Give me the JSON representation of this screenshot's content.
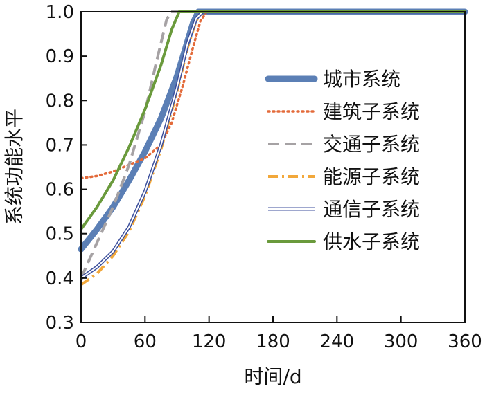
{
  "chart_data": {
    "type": "line",
    "title": "",
    "xlabel": "时间/d",
    "ylabel": "系统功能水平",
    "xlim": [
      0,
      360
    ],
    "ylim": [
      0.3,
      1.0
    ],
    "xticks": [
      0,
      60,
      120,
      180,
      240,
      300,
      360
    ],
    "yticks": [
      0.3,
      0.4,
      0.5,
      0.6,
      0.7,
      0.8,
      0.9,
      1.0
    ],
    "xtick_labels": [
      "0",
      "60",
      "120",
      "180",
      "240",
      "300",
      "360"
    ],
    "ytick_labels": [
      "0.3",
      "0.4",
      "0.5",
      "0.6",
      "0.7",
      "0.8",
      "0.9",
      "1.0"
    ],
    "grid": false,
    "legend_position": "right-center",
    "series": [
      {
        "name": "城市系统",
        "color": "#5b7fb5",
        "style": "thick-solid",
        "x": [
          0,
          15,
          30,
          45,
          60,
          75,
          90,
          105,
          110,
          360
        ],
        "y": [
          0.465,
          0.51,
          0.56,
          0.62,
          0.685,
          0.76,
          0.855,
          0.975,
          1.0,
          1.0
        ]
      },
      {
        "name": "建筑子系统",
        "color": "#e36a3a",
        "style": "dotted",
        "x": [
          0,
          15,
          30,
          45,
          60,
          75,
          85,
          95,
          105,
          112,
          118,
          360
        ],
        "y": [
          0.625,
          0.63,
          0.64,
          0.655,
          0.67,
          0.7,
          0.75,
          0.83,
          0.92,
          0.98,
          1.0,
          1.0
        ]
      },
      {
        "name": "交通子系统",
        "color": "#a6a2a4",
        "style": "dashed",
        "x": [
          0,
          15,
          30,
          45,
          60,
          70,
          80,
          84,
          360
        ],
        "y": [
          0.4,
          0.48,
          0.56,
          0.655,
          0.775,
          0.88,
          0.98,
          1.0,
          1.0
        ]
      },
      {
        "name": "能源子系统",
        "color": "#f2a83b",
        "style": "dash-dot",
        "x": [
          0,
          15,
          30,
          45,
          60,
          75,
          90,
          100,
          108,
          114,
          360
        ],
        "y": [
          0.385,
          0.41,
          0.45,
          0.505,
          0.585,
          0.69,
          0.82,
          0.92,
          0.98,
          1.0,
          1.0
        ]
      },
      {
        "name": "通信子系统",
        "color": "#3c4f9c",
        "style": "double",
        "x": [
          0,
          15,
          30,
          45,
          60,
          75,
          90,
          100,
          108,
          114,
          360
        ],
        "y": [
          0.4,
          0.425,
          0.46,
          0.515,
          0.595,
          0.7,
          0.83,
          0.93,
          0.985,
          1.0,
          1.0
        ]
      },
      {
        "name": "供水子系统",
        "color": "#6a9a3c",
        "style": "solid",
        "x": [
          0,
          15,
          30,
          45,
          60,
          75,
          85,
          92,
          360
        ],
        "y": [
          0.51,
          0.56,
          0.62,
          0.695,
          0.78,
          0.88,
          0.96,
          1.0,
          1.0
        ]
      }
    ]
  }
}
